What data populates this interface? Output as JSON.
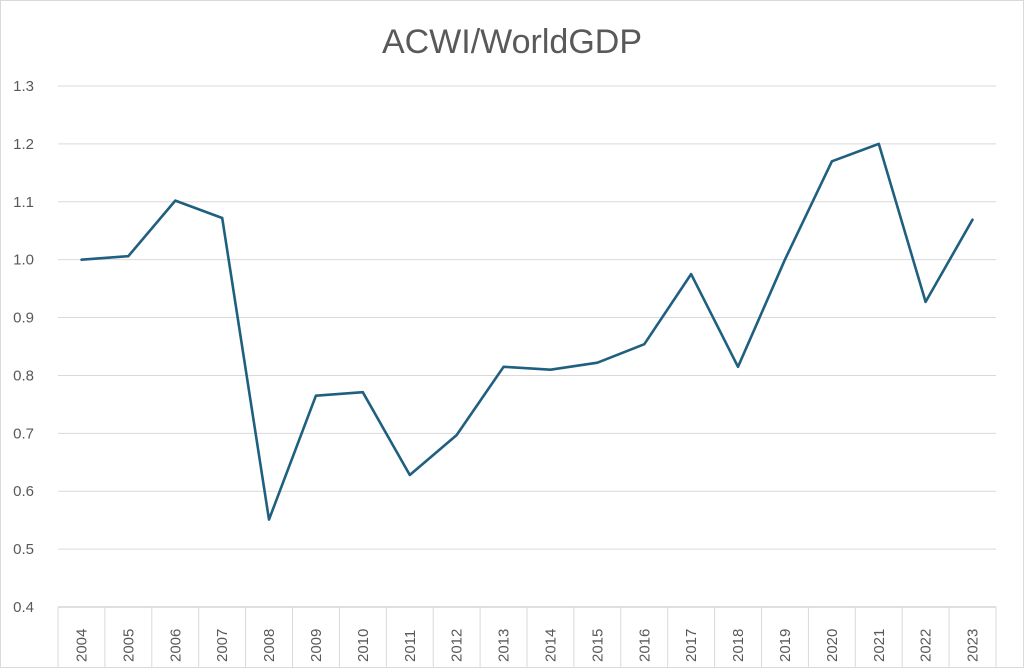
{
  "chart_data": {
    "type": "line",
    "title": "ACWI/WorldGDP",
    "xlabel": "",
    "ylabel": "",
    "categories": [
      "2004",
      "2005",
      "2006",
      "2007",
      "2008",
      "2009",
      "2010",
      "2011",
      "2012",
      "2013",
      "2014",
      "2015",
      "2016",
      "2017",
      "2018",
      "2019",
      "2020",
      "2021",
      "2022",
      "2023"
    ],
    "series": [
      {
        "name": "ACWI/WorldGDP",
        "color": "#1f5f7f",
        "values": [
          1.0,
          1.006,
          1.102,
          1.072,
          0.551,
          0.765,
          0.771,
          0.628,
          0.697,
          0.815,
          0.81,
          0.822,
          0.854,
          0.975,
          0.815,
          1.0,
          1.17,
          1.2,
          0.927,
          1.069
        ]
      }
    ],
    "ylim": [
      0.4,
      1.3
    ],
    "yticks": [
      "0.4",
      "0.5",
      "0.6",
      "0.7",
      "0.8",
      "0.9",
      "1.0",
      "1.1",
      "1.2",
      "1.3"
    ],
    "grid": true,
    "legend": "none"
  }
}
